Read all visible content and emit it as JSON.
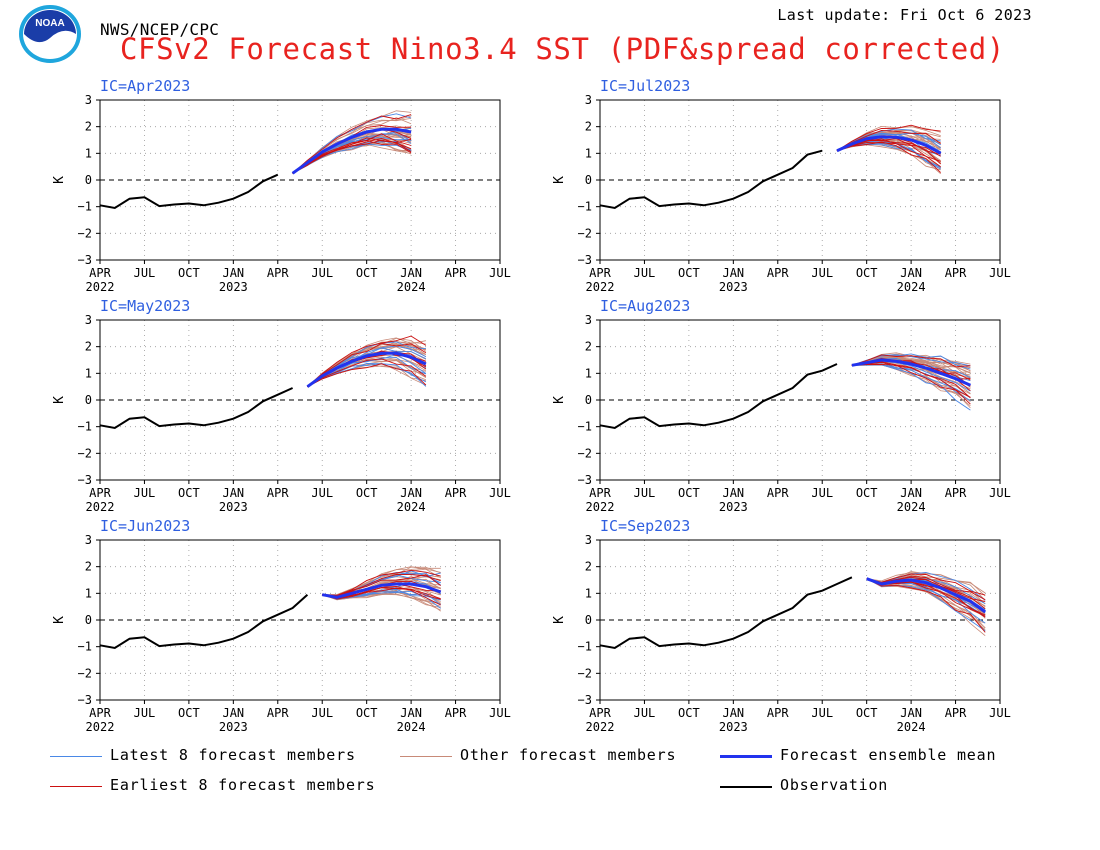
{
  "header": {
    "agency": "NWS/NCEP/CPC",
    "last_update": "Last update: Fri Oct 6 2023",
    "title": "CFSv2 Forecast Nino3.4 SST (PDF&spread corrected)"
  },
  "logo": {
    "text": "NOAA",
    "icon": "noaa-logo-icon"
  },
  "colors": {
    "title": "#e8231f",
    "panel_label": "#2f5fe0",
    "latest": "#4a88e6",
    "earliest": "#cc1111",
    "other": "#c88a78",
    "mean": "#2233ee",
    "observation": "#000000"
  },
  "legend": [
    {
      "key": "latest",
      "label": "Latest 8 forecast members"
    },
    {
      "key": "other",
      "label": "Other forecast members"
    },
    {
      "key": "mean",
      "label": "Forecast ensemble mean"
    },
    {
      "key": "earliest",
      "label": "Earliest 8 forecast members"
    },
    {
      "key": "observation",
      "label": "Observation"
    }
  ],
  "chart_data": {
    "type": "line",
    "ylabel": "K",
    "ylim": [
      -3,
      3
    ],
    "yticks": [
      3,
      2,
      1,
      0,
      -1,
      -2,
      -3
    ],
    "grid": "dotted",
    "zero_line": "dashed",
    "x_start": "2022-04",
    "x_end": "2024-07",
    "x_tick_labels": [
      "APR",
      "JUL",
      "OCT",
      "JAN",
      "APR",
      "JUL",
      "OCT",
      "JAN",
      "APR",
      "JUL"
    ],
    "x_year_labels": [
      {
        "month": "2022-04",
        "label": "2022"
      },
      {
        "month": "2023-01",
        "label": "2023"
      },
      {
        "month": "2024-01",
        "label": "2024"
      }
    ],
    "observation": {
      "months": [
        "2022-04",
        "2022-05",
        "2022-06",
        "2022-07",
        "2022-08",
        "2022-09",
        "2022-10",
        "2022-11",
        "2022-12",
        "2023-01",
        "2023-02",
        "2023-03",
        "2023-04",
        "2023-05",
        "2023-06",
        "2023-07",
        "2023-08",
        "2023-09"
      ],
      "values": [
        -0.95,
        -1.05,
        -0.7,
        -0.65,
        -0.98,
        -0.92,
        -0.88,
        -0.95,
        -0.85,
        -0.7,
        -0.45,
        -0.05,
        0.2,
        0.45,
        0.95,
        1.1,
        1.35,
        1.6
      ]
    },
    "panels": [
      {
        "ic": "IC=Apr2023",
        "start": "2023-05",
        "mean": [
          0.25,
          0.65,
          1.05,
          1.35,
          1.6,
          1.8,
          1.9,
          1.9,
          1.8
        ]
      },
      {
        "ic": "IC=Jul2023",
        "start": "2023-08",
        "mean": [
          1.1,
          1.35,
          1.55,
          1.62,
          1.6,
          1.5,
          1.3,
          1.0
        ]
      },
      {
        "ic": "IC=May2023",
        "start": "2023-06",
        "mean": [
          0.5,
          0.9,
          1.2,
          1.45,
          1.65,
          1.75,
          1.75,
          1.6,
          1.35
        ]
      },
      {
        "ic": "IC=Aug2023",
        "start": "2023-09",
        "mean": [
          1.3,
          1.4,
          1.5,
          1.45,
          1.35,
          1.2,
          1.0,
          0.8,
          0.55
        ]
      },
      {
        "ic": "IC=Jun2023",
        "start": "2023-07",
        "mean": [
          0.95,
          0.85,
          1.0,
          1.15,
          1.3,
          1.35,
          1.35,
          1.25,
          1.05
        ]
      },
      {
        "ic": "IC=Sep2023",
        "start": "2023-10",
        "mean": [
          1.55,
          1.35,
          1.45,
          1.5,
          1.4,
          1.2,
          0.95,
          0.7,
          0.3
        ]
      }
    ]
  }
}
